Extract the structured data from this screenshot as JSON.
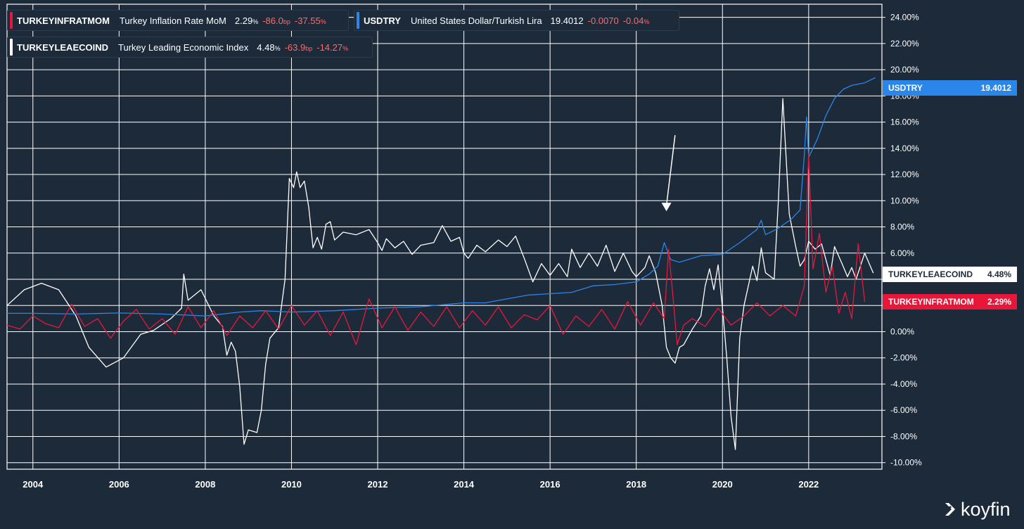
{
  "legend": [
    {
      "ticker": "TURKEYINFRATMOM",
      "name": "Turkey Inflation Rate MoM",
      "value": "2.29",
      "unit": "%",
      "change": "-86.0",
      "change_unit": "bp",
      "pct": "-37.55",
      "pct_unit": "%",
      "color": "#e8173a"
    },
    {
      "ticker": "USDTRY",
      "name": "United States Dollar/Turkish Lira",
      "value": "19.4012",
      "unit": "",
      "change": "-0.0070",
      "change_unit": "",
      "pct": "-0.04",
      "pct_unit": "%",
      "color": "#2a86e8"
    },
    {
      "ticker": "TURKEYLEAECOIND",
      "name": "Turkey Leading Economic Index",
      "value": "4.48",
      "unit": "%",
      "change": "-63.9",
      "change_unit": "bp",
      "pct": "-14.27",
      "pct_unit": "%",
      "color": "#ffffff"
    }
  ],
  "tags": {
    "usdtry": {
      "label": "USDTRY",
      "value": "19.4012"
    },
    "leaecoind": {
      "label": "TURKEYLEAECOIND",
      "value": "4.48%"
    },
    "infratmom": {
      "label": "TURKEYINFRATMOM",
      "value": "2.29%"
    }
  },
  "brand": "koyfin",
  "chart_data": {
    "type": "line",
    "x_ticks": [
      "2004",
      "2006",
      "2008",
      "2010",
      "2012",
      "2014",
      "2016",
      "2018",
      "2020",
      "2022"
    ],
    "y_ticks": [
      "24.00%",
      "22.00%",
      "20.00%",
      "18.00%",
      "16.00%",
      "14.00%",
      "12.00%",
      "10.00%",
      "8.00%",
      "6.00%",
      "4.00%",
      "2.00%",
      "0.00%",
      "-2.00%",
      "-4.00%",
      "-6.00%",
      "-8.00%",
      "-10.00%"
    ],
    "ylim": [
      -10.5,
      25
    ],
    "xlim": [
      2003.4,
      2023.7
    ],
    "grid": true,
    "annotations": [
      {
        "type": "arrow",
        "from": [
          2018.9,
          15
        ],
        "to": [
          2018.7,
          9.2
        ]
      }
    ],
    "series": [
      {
        "name": "TURKEYLEAECOIND",
        "color": "#ffffff",
        "points": [
          [
            2003.4,
            2.0
          ],
          [
            2003.8,
            3.2
          ],
          [
            2004.2,
            3.7
          ],
          [
            2004.6,
            3.2
          ],
          [
            2005.0,
            1.2
          ],
          [
            2005.3,
            -1.2
          ],
          [
            2005.7,
            -2.7
          ],
          [
            2006.1,
            -2.0
          ],
          [
            2006.5,
            -0.2
          ],
          [
            2006.8,
            0.1
          ],
          [
            2007.2,
            1.0
          ],
          [
            2007.45,
            1.8
          ],
          [
            2007.5,
            4.4
          ],
          [
            2007.6,
            2.4
          ],
          [
            2007.9,
            3.2
          ],
          [
            2008.2,
            1.2
          ],
          [
            2008.4,
            0.4
          ],
          [
            2008.5,
            -1.8
          ],
          [
            2008.6,
            -0.8
          ],
          [
            2008.7,
            -1.5
          ],
          [
            2008.8,
            -4.2
          ],
          [
            2008.9,
            -8.6
          ],
          [
            2009.0,
            -7.5
          ],
          [
            2009.2,
            -7.7
          ],
          [
            2009.3,
            -6.0
          ],
          [
            2009.4,
            -2.5
          ],
          [
            2009.5,
            -0.5
          ],
          [
            2009.7,
            0.3
          ],
          [
            2009.85,
            4.0
          ],
          [
            2009.95,
            11.7
          ],
          [
            2010.05,
            11.0
          ],
          [
            2010.12,
            12.2
          ],
          [
            2010.2,
            11.0
          ],
          [
            2010.3,
            11.5
          ],
          [
            2010.4,
            9.5
          ],
          [
            2010.5,
            6.4
          ],
          [
            2010.6,
            7.2
          ],
          [
            2010.7,
            6.3
          ],
          [
            2010.8,
            8.2
          ],
          [
            2010.9,
            8.4
          ],
          [
            2011.0,
            7.0
          ],
          [
            2011.2,
            7.6
          ],
          [
            2011.5,
            7.4
          ],
          [
            2011.8,
            7.8
          ],
          [
            2012.0,
            6.8
          ],
          [
            2012.1,
            6.2
          ],
          [
            2012.2,
            7.1
          ],
          [
            2012.4,
            6.4
          ],
          [
            2012.6,
            6.9
          ],
          [
            2012.8,
            5.9
          ],
          [
            2013.0,
            6.6
          ],
          [
            2013.3,
            6.8
          ],
          [
            2013.5,
            8.1
          ],
          [
            2013.7,
            6.9
          ],
          [
            2013.9,
            7.2
          ],
          [
            2014.0,
            6.0
          ],
          [
            2014.1,
            5.6
          ],
          [
            2014.3,
            6.6
          ],
          [
            2014.5,
            6.1
          ],
          [
            2014.8,
            7.0
          ],
          [
            2015.0,
            6.5
          ],
          [
            2015.2,
            7.3
          ],
          [
            2015.4,
            5.6
          ],
          [
            2015.6,
            3.8
          ],
          [
            2015.8,
            5.2
          ],
          [
            2016.0,
            4.3
          ],
          [
            2016.2,
            5.2
          ],
          [
            2016.4,
            4.2
          ],
          [
            2016.5,
            6.3
          ],
          [
            2016.7,
            4.9
          ],
          [
            2016.9,
            6.0
          ],
          [
            2017.1,
            5.0
          ],
          [
            2017.3,
            6.6
          ],
          [
            2017.5,
            4.6
          ],
          [
            2017.7,
            6.0
          ],
          [
            2017.9,
            4.6
          ],
          [
            2018.0,
            4.2
          ],
          [
            2018.2,
            4.9
          ],
          [
            2018.3,
            5.8
          ],
          [
            2018.45,
            4.5
          ],
          [
            2018.6,
            2.0
          ],
          [
            2018.7,
            -1.2
          ],
          [
            2018.8,
            -2.0
          ],
          [
            2018.9,
            -2.4
          ],
          [
            2019.0,
            -1.2
          ],
          [
            2019.1,
            -1.0
          ],
          [
            2019.3,
            0.2
          ],
          [
            2019.5,
            1.2
          ],
          [
            2019.6,
            3.5
          ],
          [
            2019.7,
            4.8
          ],
          [
            2019.8,
            3.2
          ],
          [
            2019.9,
            5.1
          ],
          [
            2020.0,
            1.8
          ],
          [
            2020.1,
            -2.0
          ],
          [
            2020.2,
            -6.5
          ],
          [
            2020.3,
            -9.0
          ],
          [
            2020.4,
            -0.5
          ],
          [
            2020.5,
            2.0
          ],
          [
            2020.7,
            5.0
          ],
          [
            2020.8,
            3.9
          ],
          [
            2020.9,
            6.4
          ],
          [
            2021.0,
            4.5
          ],
          [
            2021.2,
            4.0
          ],
          [
            2021.3,
            10.2
          ],
          [
            2021.4,
            17.8
          ],
          [
            2021.55,
            9.0
          ],
          [
            2021.7,
            6.5
          ],
          [
            2021.8,
            5.0
          ],
          [
            2021.9,
            5.5
          ],
          [
            2022.0,
            6.9
          ],
          [
            2022.15,
            6.3
          ],
          [
            2022.3,
            6.7
          ],
          [
            2022.5,
            4.3
          ],
          [
            2022.6,
            6.5
          ],
          [
            2022.8,
            5.0
          ],
          [
            2022.9,
            4.2
          ],
          [
            2023.0,
            4.9
          ],
          [
            2023.1,
            4.0
          ],
          [
            2023.3,
            6.0
          ],
          [
            2023.5,
            4.48
          ]
        ]
      },
      {
        "name": "USDTRY",
        "color": "#2a86e8",
        "points": [
          [
            2003.4,
            1.4
          ],
          [
            2004.0,
            1.4
          ],
          [
            2005.0,
            1.35
          ],
          [
            2006.0,
            1.43
          ],
          [
            2007.0,
            1.35
          ],
          [
            2008.0,
            1.2
          ],
          [
            2008.8,
            1.5
          ],
          [
            2009.3,
            1.6
          ],
          [
            2010.0,
            1.5
          ],
          [
            2011.0,
            1.6
          ],
          [
            2012.0,
            1.8
          ],
          [
            2013.0,
            1.9
          ],
          [
            2014.0,
            2.2
          ],
          [
            2014.5,
            2.2
          ],
          [
            2015.0,
            2.5
          ],
          [
            2015.5,
            2.8
          ],
          [
            2016.0,
            2.9
          ],
          [
            2016.5,
            3.0
          ],
          [
            2017.0,
            3.5
          ],
          [
            2017.5,
            3.6
          ],
          [
            2018.0,
            3.8
          ],
          [
            2018.3,
            4.4
          ],
          [
            2018.5,
            5.0
          ],
          [
            2018.65,
            6.8
          ],
          [
            2018.8,
            5.5
          ],
          [
            2019.0,
            5.3
          ],
          [
            2019.5,
            5.8
          ],
          [
            2020.0,
            5.9
          ],
          [
            2020.4,
            6.8
          ],
          [
            2020.8,
            7.8
          ],
          [
            2020.9,
            8.5
          ],
          [
            2021.0,
            7.4
          ],
          [
            2021.3,
            7.9
          ],
          [
            2021.6,
            8.6
          ],
          [
            2021.8,
            9.3
          ],
          [
            2021.9,
            13.5
          ],
          [
            2021.95,
            16.4
          ],
          [
            2022.0,
            13.3
          ],
          [
            2022.2,
            14.7
          ],
          [
            2022.4,
            16.5
          ],
          [
            2022.6,
            17.8
          ],
          [
            2022.8,
            18.5
          ],
          [
            2023.0,
            18.8
          ],
          [
            2023.3,
            19.0
          ],
          [
            2023.55,
            19.4
          ]
        ]
      },
      {
        "name": "TURKEYINFRATMOM",
        "color": "#e8173a",
        "points": [
          [
            2003.4,
            0.5
          ],
          [
            2003.7,
            0.2
          ],
          [
            2004.0,
            1.2
          ],
          [
            2004.3,
            0.6
          ],
          [
            2004.6,
            0.3
          ],
          [
            2004.9,
            2.1
          ],
          [
            2005.2,
            0.4
          ],
          [
            2005.5,
            1.0
          ],
          [
            2005.8,
            -0.5
          ],
          [
            2006.1,
            0.8
          ],
          [
            2006.4,
            1.7
          ],
          [
            2006.7,
            0.2
          ],
          [
            2007.0,
            1.0
          ],
          [
            2007.3,
            -0.2
          ],
          [
            2007.6,
            1.9
          ],
          [
            2007.9,
            0.3
          ],
          [
            2008.2,
            1.6
          ],
          [
            2008.5,
            -0.3
          ],
          [
            2008.8,
            1.2
          ],
          [
            2009.1,
            0.3
          ],
          [
            2009.4,
            1.6
          ],
          [
            2009.7,
            0.2
          ],
          [
            2010.0,
            2.0
          ],
          [
            2010.3,
            0.5
          ],
          [
            2010.6,
            1.6
          ],
          [
            2010.9,
            -0.3
          ],
          [
            2011.2,
            1.5
          ],
          [
            2011.5,
            -1.0
          ],
          [
            2011.8,
            2.5
          ],
          [
            2012.1,
            0.3
          ],
          [
            2012.4,
            1.9
          ],
          [
            2012.7,
            0.1
          ],
          [
            2013.0,
            1.5
          ],
          [
            2013.3,
            0.4
          ],
          [
            2013.6,
            1.9
          ],
          [
            2013.9,
            0.3
          ],
          [
            2014.2,
            1.6
          ],
          [
            2014.5,
            0.5
          ],
          [
            2014.8,
            1.9
          ],
          [
            2015.1,
            0.3
          ],
          [
            2015.4,
            1.3
          ],
          [
            2015.7,
            0.9
          ],
          [
            2016.0,
            2.0
          ],
          [
            2016.3,
            -0.2
          ],
          [
            2016.6,
            1.2
          ],
          [
            2016.9,
            0.4
          ],
          [
            2017.2,
            1.7
          ],
          [
            2017.5,
            0.2
          ],
          [
            2017.8,
            2.3
          ],
          [
            2018.1,
            0.5
          ],
          [
            2018.4,
            2.2
          ],
          [
            2018.65,
            1.0
          ],
          [
            2018.75,
            6.3
          ],
          [
            2018.85,
            2.7
          ],
          [
            2018.95,
            -1.0
          ],
          [
            2019.1,
            0.5
          ],
          [
            2019.3,
            1.0
          ],
          [
            2019.6,
            0.4
          ],
          [
            2019.9,
            1.8
          ],
          [
            2020.2,
            0.5
          ],
          [
            2020.5,
            1.2
          ],
          [
            2020.8,
            2.2
          ],
          [
            2021.1,
            1.2
          ],
          [
            2021.4,
            2.0
          ],
          [
            2021.7,
            1.2
          ],
          [
            2021.9,
            3.5
          ],
          [
            2022.0,
            13.6
          ],
          [
            2022.1,
            4.8
          ],
          [
            2022.25,
            7.5
          ],
          [
            2022.4,
            3.0
          ],
          [
            2022.55,
            5.0
          ],
          [
            2022.7,
            1.4
          ],
          [
            2022.85,
            3.0
          ],
          [
            2023.0,
            1.0
          ],
          [
            2023.15,
            6.7
          ],
          [
            2023.3,
            2.29
          ]
        ]
      }
    ]
  }
}
